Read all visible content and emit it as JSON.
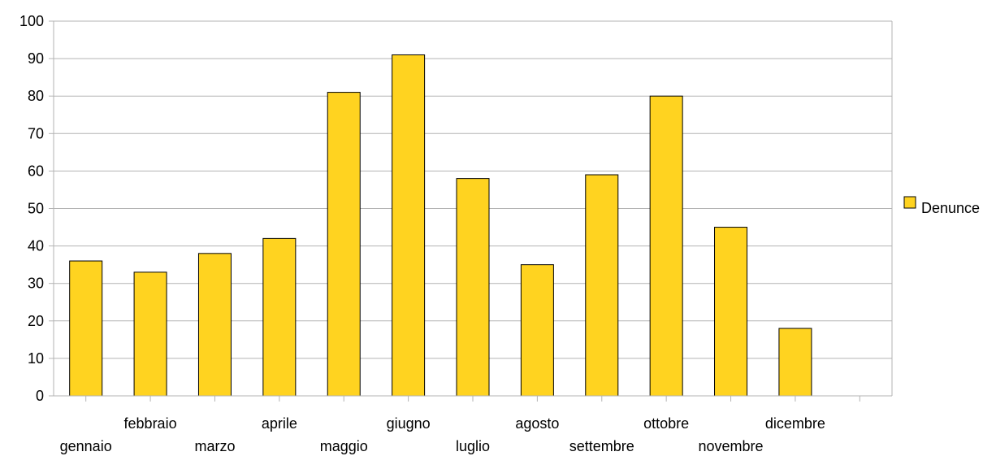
{
  "chart_data": {
    "type": "bar",
    "categories": [
      "gennaio",
      "febbraio",
      "marzo",
      "aprile",
      "maggio",
      "giugno",
      "luglio",
      "agosto",
      "settembre",
      "ottobre",
      "novembre",
      "dicembre"
    ],
    "series": [
      {
        "name": "Denunce",
        "values": [
          36,
          33,
          38,
          42,
          81,
          91,
          58,
          35,
          59,
          80,
          45,
          18
        ],
        "color": "#FFD320"
      }
    ],
    "ylim": [
      0,
      100
    ],
    "yticks": [
      0,
      10,
      20,
      30,
      40,
      50,
      60,
      70,
      80,
      90,
      100
    ],
    "grid": true,
    "legend": "right",
    "gridline_color": "#B3B3B3",
    "bar_outline_color": "#000000"
  }
}
